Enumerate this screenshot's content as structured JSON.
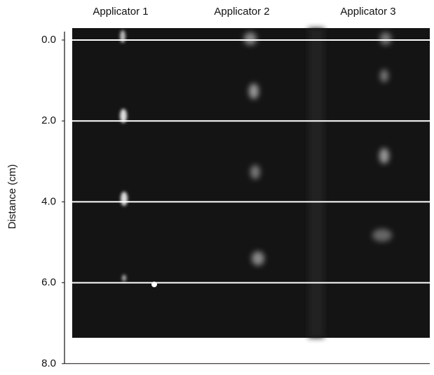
{
  "header": {
    "columns": [
      "Applicator 1",
      "Applicator 2",
      "Applicator 3"
    ]
  },
  "axis": {
    "label": "Distance (cm)",
    "ticks": [
      {
        "value": 0,
        "label": "0.0"
      },
      {
        "value": 2,
        "label": "2.0"
      },
      {
        "value": 4,
        "label": "4.0"
      },
      {
        "value": 6,
        "label": "6.0"
      },
      {
        "value": 8,
        "label": "8.0"
      }
    ]
  }
}
